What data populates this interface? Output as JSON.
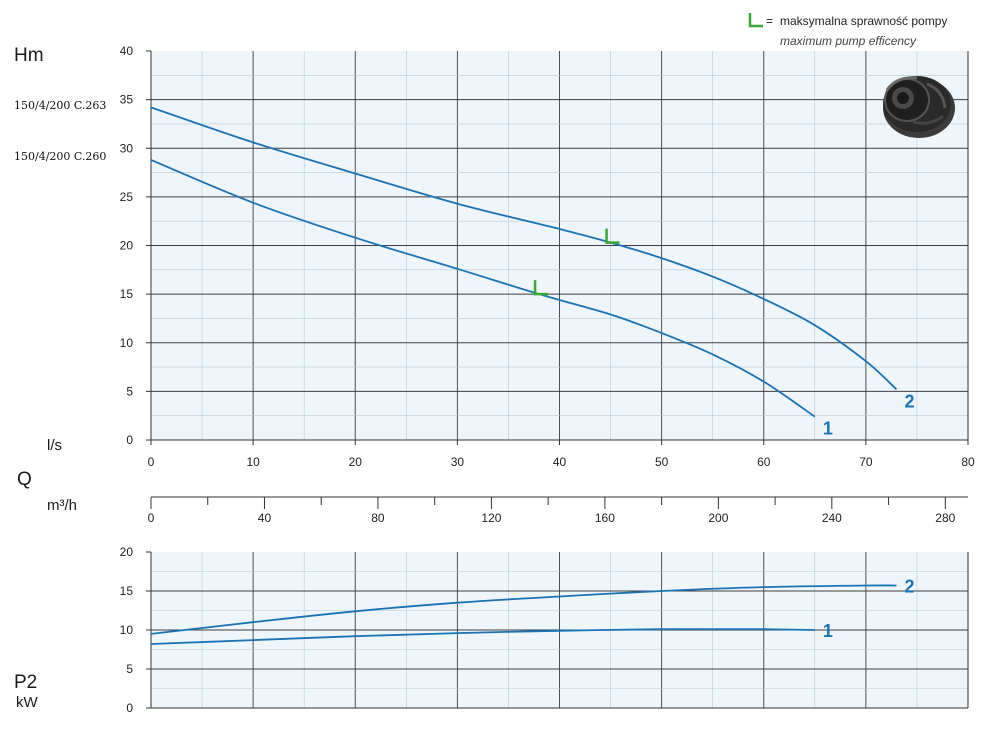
{
  "legend": {
    "marker_prefix": "=",
    "text": "maksymalna sprawność pompy",
    "subtext": "maximum pump efficency"
  },
  "models": [
    "150/4/200 C.263",
    "150/4/200 C.260"
  ],
  "colors": {
    "curve": "#1a73b5",
    "marker": "#3aa635",
    "plot_bg": "#eef6fb",
    "minor_grid": "#b5c8d4",
    "major_grid": "#3e3e3e"
  },
  "icons": {
    "product": "pump-impeller-icon"
  },
  "chart_data": [
    {
      "type": "line",
      "title": "",
      "ylabel": "Hm",
      "xlabel": "l/s",
      "xlim": [
        0,
        80
      ],
      "ylim": [
        0,
        40
      ],
      "x_ticks": [
        0,
        10,
        20,
        30,
        40,
        50,
        60,
        70,
        80
      ],
      "y_ticks": [
        0,
        5,
        10,
        15,
        20,
        25,
        30,
        35,
        40
      ],
      "grid": true,
      "legend_placement": "top-right",
      "series": [
        {
          "name": "1",
          "points": [
            [
              0,
              28.8
            ],
            [
              10,
              24.4
            ],
            [
              20,
              20.8
            ],
            [
              30,
              17.6
            ],
            [
              38,
              15.0
            ],
            [
              45,
              12.9
            ],
            [
              50,
              11.0
            ],
            [
              55,
              8.8
            ],
            [
              60,
              6.0
            ],
            [
              65,
              2.4
            ]
          ]
        },
        {
          "name": "2",
          "points": [
            [
              0,
              34.2
            ],
            [
              10,
              30.6
            ],
            [
              20,
              27.4
            ],
            [
              30,
              24.3
            ],
            [
              40,
              21.7
            ],
            [
              45,
              20.3
            ],
            [
              50,
              18.7
            ],
            [
              55,
              16.8
            ],
            [
              60,
              14.5
            ],
            [
              65,
              11.8
            ],
            [
              70,
              8.1
            ],
            [
              73,
              5.2
            ]
          ]
        }
      ],
      "bep_markers": [
        {
          "series": "1",
          "x": 38,
          "y": 15.0
        },
        {
          "series": "2",
          "x": 45,
          "y": 20.3
        }
      ]
    },
    {
      "type": "axis",
      "label": "m³/h",
      "side_label": "Q",
      "xlim": [
        0,
        288
      ],
      "x_ticks": [
        0,
        40,
        80,
        120,
        160,
        200,
        240,
        280
      ]
    },
    {
      "type": "line",
      "title": "",
      "ylabel": "P2",
      "yunit": "kW",
      "xlim": [
        0,
        80
      ],
      "ylim": [
        0,
        20
      ],
      "y_ticks": [
        0,
        5,
        10,
        15,
        20
      ],
      "grid": true,
      "series": [
        {
          "name": "1",
          "points": [
            [
              0,
              8.2
            ],
            [
              10,
              8.7
            ],
            [
              20,
              9.2
            ],
            [
              30,
              9.6
            ],
            [
              40,
              9.9
            ],
            [
              50,
              10.1
            ],
            [
              55,
              10.1
            ],
            [
              60,
              10.1
            ],
            [
              65,
              10.0
            ]
          ]
        },
        {
          "name": "2",
          "points": [
            [
              0,
              9.5
            ],
            [
              10,
              11.0
            ],
            [
              20,
              12.4
            ],
            [
              30,
              13.5
            ],
            [
              40,
              14.3
            ],
            [
              50,
              15.0
            ],
            [
              60,
              15.5
            ],
            [
              70,
              15.7
            ],
            [
              73,
              15.7
            ]
          ]
        }
      ]
    }
  ]
}
